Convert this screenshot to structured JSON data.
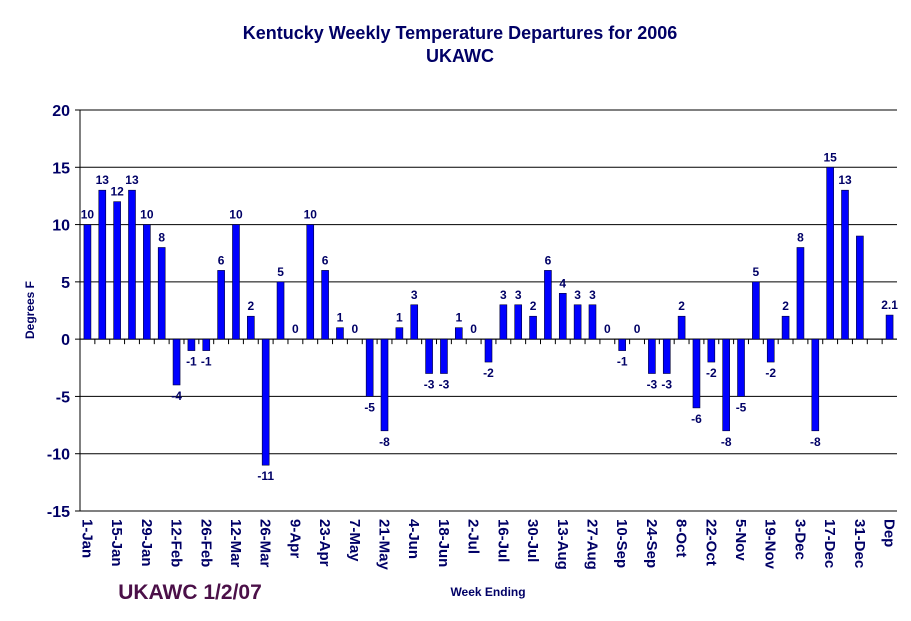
{
  "chart_data": {
    "type": "bar",
    "title": "Kentucky Weekly Temperature Departures for 2006",
    "subtitle": "UKAWC",
    "y_label": "Degrees F",
    "x_label": "Week Ending",
    "annotation": "UKAWC 1/2/07",
    "color": "#0000ff",
    "ylim": [
      -15,
      20
    ],
    "yticks": [
      -15,
      -10,
      -5,
      0,
      5,
      10,
      15,
      20
    ],
    "grid": true,
    "categories": [
      "1-Jan",
      null,
      "15-Jan",
      null,
      "29-Jan",
      null,
      "12-Feb",
      null,
      "26-Feb",
      null,
      "12-Mar",
      null,
      "26-Mar",
      null,
      "9-Apr",
      null,
      "23-Apr",
      null,
      "7-May",
      null,
      "21-May",
      null,
      "4-Jun",
      null,
      "18-Jun",
      null,
      "2-Jul",
      null,
      "16-Jul",
      null,
      "30-Jul",
      null,
      "13-Aug",
      null,
      "27-Aug",
      null,
      "10-Sep",
      null,
      "24-Sep",
      null,
      "8-Oct",
      null,
      "22-Oct",
      null,
      "5-Nov",
      null,
      "19-Nov",
      null,
      "3-Dec",
      null,
      "17-Dec",
      null,
      "31-Dec",
      null,
      "Dep"
    ],
    "values": [
      10,
      13,
      12,
      13,
      10,
      8,
      -4,
      -1,
      -1,
      6,
      10,
      2,
      -11,
      5,
      0,
      10,
      6,
      1,
      0,
      -5,
      -8,
      1,
      3,
      -3,
      -3,
      1,
      0,
      -2,
      3,
      3,
      2,
      6,
      4,
      3,
      3,
      0,
      -1,
      0,
      -3,
      -3,
      2,
      -6,
      -2,
      -8,
      -5,
      5,
      -2,
      2,
      8,
      -8,
      15,
      13,
      9,
      null,
      2.1
    ],
    "value_labels": [
      "10",
      "13",
      "12",
      "13",
      "10",
      "8",
      "-4",
      "-1",
      "-1",
      "6",
      "10",
      "2",
      "-11",
      "5",
      "0",
      "10",
      "6",
      "1",
      "0",
      "-5",
      "-8",
      "1",
      "3",
      "-3",
      "-3",
      "1",
      "0",
      "-2",
      "3",
      "3",
      "2",
      "6",
      "4",
      "3",
      "3",
      "0",
      "-1",
      "0",
      "-3",
      "-3",
      "2",
      "-6",
      "-2",
      "-8",
      "-5",
      "5",
      "-2",
      "2",
      "8",
      "-8",
      "15",
      "13",
      null,
      null,
      "2.1"
    ]
  }
}
